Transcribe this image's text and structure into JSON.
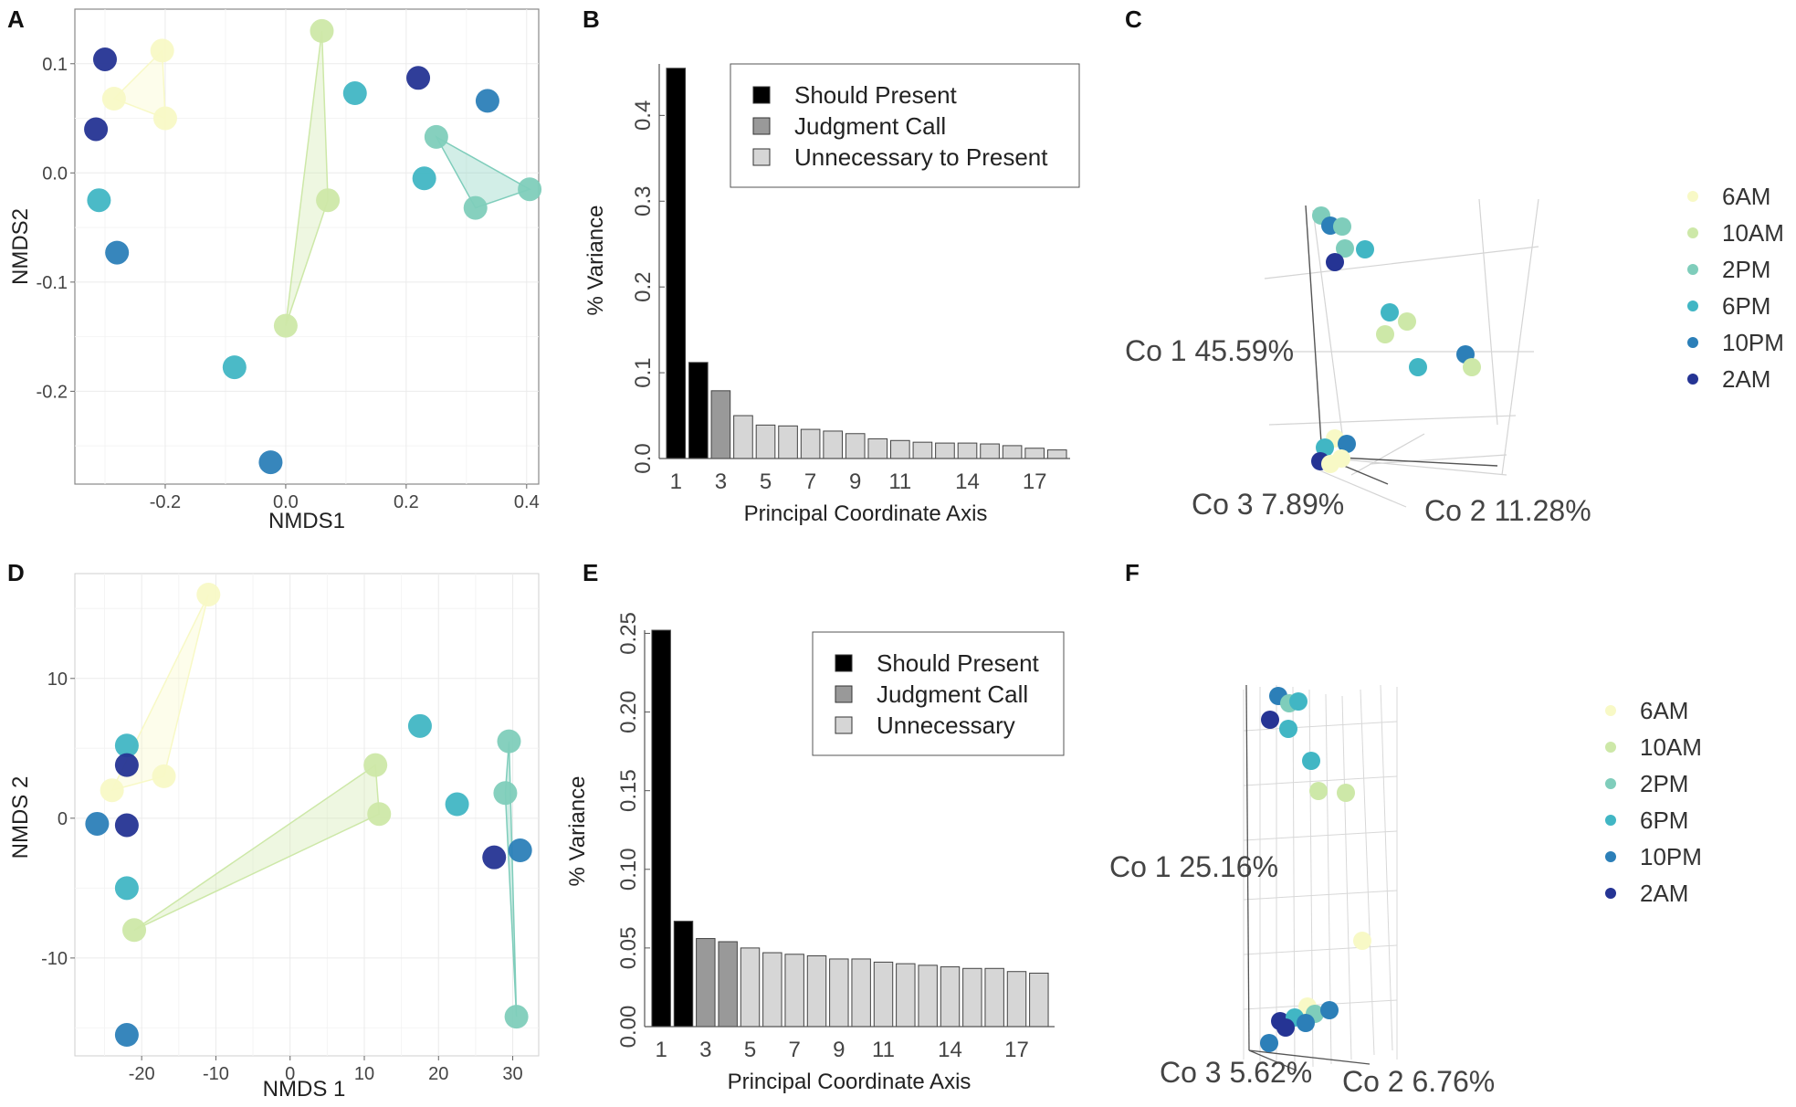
{
  "figure": {
    "colors": {
      "6AM": "#f8f9c6",
      "10AM": "#cde8a8",
      "2PM": "#7fcdbb",
      "6PM": "#41b6c4",
      "10PM": "#2c7fb8",
      "2AM": "#253494",
      "should": "#000000",
      "judgment": "#999999",
      "unnecessary": "#d6d6d6"
    }
  },
  "chart_data": [
    {
      "panel": "A",
      "type": "scatter",
      "xlabel": "NMDS1",
      "ylabel": "NMDS2",
      "xlim": [
        -0.35,
        0.42
      ],
      "ylim": [
        -0.285,
        0.15
      ],
      "xticks": [
        -0.2,
        0.0,
        0.2,
        0.4
      ],
      "xtick_labels": [
        "-0.2",
        "0.0",
        "0.2",
        "0.4"
      ],
      "yticks": [
        -0.2,
        -0.1,
        0.0,
        0.1
      ],
      "ytick_labels": [
        "-0.2",
        "-0.1",
        "0.0",
        "0.1"
      ],
      "hulls": [
        {
          "group": "6AM",
          "points": [
            [
              -0.285,
              0.068
            ],
            [
              -0.205,
              0.112
            ],
            [
              -0.2,
              0.05
            ]
          ]
        },
        {
          "group": "10AM",
          "points": [
            [
              0.06,
              0.13
            ],
            [
              0.07,
              -0.025
            ],
            [
              0.0,
              -0.14
            ]
          ]
        },
        {
          "group": "2PM",
          "points": [
            [
              0.25,
              0.033
            ],
            [
              0.405,
              -0.015
            ],
            [
              0.315,
              -0.032
            ]
          ]
        }
      ],
      "points": [
        {
          "x": -0.3,
          "y": 0.104,
          "group": "2AM"
        },
        {
          "x": -0.315,
          "y": 0.04,
          "group": "2AM"
        },
        {
          "x": -0.205,
          "y": 0.112,
          "group": "6AM"
        },
        {
          "x": -0.285,
          "y": 0.068,
          "group": "6AM"
        },
        {
          "x": -0.2,
          "y": 0.05,
          "group": "6AM"
        },
        {
          "x": -0.31,
          "y": -0.025,
          "group": "6PM"
        },
        {
          "x": -0.28,
          "y": -0.073,
          "group": "10PM"
        },
        {
          "x": 0.06,
          "y": 0.13,
          "group": "10AM"
        },
        {
          "x": 0.115,
          "y": 0.073,
          "group": "6PM"
        },
        {
          "x": 0.07,
          "y": -0.025,
          "group": "10AM"
        },
        {
          "x": 0.0,
          "y": -0.14,
          "group": "10AM"
        },
        {
          "x": -0.085,
          "y": -0.178,
          "group": "6PM"
        },
        {
          "x": -0.025,
          "y": -0.265,
          "group": "10PM"
        },
        {
          "x": 0.22,
          "y": 0.087,
          "group": "2AM"
        },
        {
          "x": 0.335,
          "y": 0.066,
          "group": "10PM"
        },
        {
          "x": 0.25,
          "y": 0.033,
          "group": "2PM"
        },
        {
          "x": 0.23,
          "y": -0.005,
          "group": "6PM"
        },
        {
          "x": 0.405,
          "y": -0.015,
          "group": "2PM"
        },
        {
          "x": 0.315,
          "y": -0.032,
          "group": "2PM"
        }
      ]
    },
    {
      "panel": "B",
      "type": "bar",
      "title": "",
      "xlabel": "Principal Coordinate Axis",
      "ylabel": "% Variance",
      "ylim": [
        0,
        0.46
      ],
      "yticks": [
        0.0,
        0.1,
        0.2,
        0.3,
        0.4
      ],
      "ytick_labels": [
        "0.0",
        "0.1",
        "0.2",
        "0.3",
        "0.4"
      ],
      "xtick_labels": [
        "1",
        "3",
        "5",
        "7",
        "9",
        "11",
        "14",
        "17"
      ],
      "xtick_positions": [
        1,
        3,
        5,
        7,
        9,
        11,
        14,
        17
      ],
      "values": [
        0.455,
        0.112,
        0.079,
        0.05,
        0.039,
        0.038,
        0.034,
        0.032,
        0.029,
        0.023,
        0.021,
        0.019,
        0.018,
        0.018,
        0.017,
        0.015,
        0.012,
        0.01
      ],
      "classes": [
        "should",
        "should",
        "judgment",
        "unnecessary",
        "unnecessary",
        "unnecessary",
        "unnecessary",
        "unnecessary",
        "unnecessary",
        "unnecessary",
        "unnecessary",
        "unnecessary",
        "unnecessary",
        "unnecessary",
        "unnecessary",
        "unnecessary",
        "unnecessary",
        "unnecessary"
      ],
      "legend": [
        {
          "key": "should",
          "label": "Should Present"
        },
        {
          "key": "judgment",
          "label": "Judgment Call"
        },
        {
          "key": "unnecessary",
          "label": "Unnecessary to Present"
        }
      ]
    },
    {
      "panel": "C",
      "type": "scatter3d",
      "axis_labels": {
        "co1": "Co 1 45.59%",
        "co2": "Co 2 11.28%",
        "co3": "Co 3 7.89%"
      },
      "legend": [
        "6AM",
        "10AM",
        "2PM",
        "6PM",
        "10PM",
        "2AM"
      ],
      "points": [
        {
          "group": "2PM"
        },
        {
          "group": "10PM"
        },
        {
          "group": "2PM"
        },
        {
          "group": "2PM"
        },
        {
          "group": "6PM"
        },
        {
          "group": "2AM"
        },
        {
          "group": "6PM"
        },
        {
          "group": "10AM"
        },
        {
          "group": "10AM"
        },
        {
          "group": "6PM"
        },
        {
          "group": "10PM"
        },
        {
          "group": "10AM"
        },
        {
          "group": "6AM"
        },
        {
          "group": "6PM"
        },
        {
          "group": "10PM"
        },
        {
          "group": "2AM"
        },
        {
          "group": "6AM"
        },
        {
          "group": "6AM"
        }
      ]
    },
    {
      "panel": "D",
      "type": "scatter",
      "xlabel": "NMDS 1",
      "ylabel": "NMDS 2",
      "xlim": [
        -29,
        33.5
      ],
      "ylim": [
        -17,
        17.5
      ],
      "xticks": [
        -20,
        -10,
        0,
        10,
        20,
        30
      ],
      "xtick_labels": [
        "-20",
        "-10",
        "0",
        "10",
        "20",
        "30"
      ],
      "yticks": [
        -10,
        0,
        10
      ],
      "ytick_labels": [
        "-10",
        "0",
        "10"
      ],
      "hulls": [
        {
          "group": "6AM",
          "points": [
            [
              -11,
              16
            ],
            [
              -17,
              3
            ],
            [
              -24,
              2
            ]
          ]
        },
        {
          "group": "10AM",
          "points": [
            [
              -21,
              -8
            ],
            [
              11.5,
              3.8
            ],
            [
              12,
              0.3
            ]
          ]
        },
        {
          "group": "2PM",
          "points": [
            [
              29.5,
              5.5
            ],
            [
              29,
              1.8
            ],
            [
              30.5,
              -14.2
            ]
          ]
        }
      ],
      "points": [
        {
          "x": -11,
          "y": 16,
          "group": "6AM"
        },
        {
          "x": -17,
          "y": 3,
          "group": "6AM"
        },
        {
          "x": -24,
          "y": 2,
          "group": "6AM"
        },
        {
          "x": -22,
          "y": 5.2,
          "group": "6PM"
        },
        {
          "x": -22,
          "y": 3.8,
          "group": "2AM"
        },
        {
          "x": -26,
          "y": -0.4,
          "group": "10PM"
        },
        {
          "x": -22,
          "y": -0.5,
          "group": "2AM"
        },
        {
          "x": -22,
          "y": -5,
          "group": "6PM"
        },
        {
          "x": -21,
          "y": -8,
          "group": "10AM"
        },
        {
          "x": -22,
          "y": -15.5,
          "group": "10PM"
        },
        {
          "x": 11.5,
          "y": 3.8,
          "group": "10AM"
        },
        {
          "x": 12,
          "y": 0.3,
          "group": "10AM"
        },
        {
          "x": 17.5,
          "y": 6.6,
          "group": "6PM"
        },
        {
          "x": 22.5,
          "y": 1,
          "group": "6PM"
        },
        {
          "x": 29.5,
          "y": 5.5,
          "group": "2PM"
        },
        {
          "x": 29,
          "y": 1.8,
          "group": "2PM"
        },
        {
          "x": 27.5,
          "y": -2.8,
          "group": "2AM"
        },
        {
          "x": 31,
          "y": -2.3,
          "group": "10PM"
        },
        {
          "x": 30.5,
          "y": -14.2,
          "group": "2PM"
        }
      ]
    },
    {
      "panel": "E",
      "type": "bar",
      "title": "",
      "xlabel": "Principal Coordinate Axis",
      "ylabel": "% Variance",
      "ylim": [
        0,
        0.252
      ],
      "yticks": [
        0.0,
        0.05,
        0.1,
        0.15,
        0.2,
        0.25
      ],
      "ytick_labels": [
        "0.00",
        "0.05",
        "0.10",
        "0.15",
        "0.20",
        "0.25"
      ],
      "xtick_labels": [
        "1",
        "3",
        "5",
        "7",
        "9",
        "11",
        "14",
        "17"
      ],
      "xtick_positions": [
        1,
        3,
        5,
        7,
        9,
        11,
        14,
        17
      ],
      "values": [
        0.252,
        0.067,
        0.056,
        0.054,
        0.05,
        0.047,
        0.046,
        0.045,
        0.043,
        0.043,
        0.041,
        0.04,
        0.039,
        0.038,
        0.037,
        0.037,
        0.035,
        0.034
      ],
      "classes": [
        "should",
        "should",
        "judgment",
        "judgment",
        "unnecessary",
        "unnecessary",
        "unnecessary",
        "unnecessary",
        "unnecessary",
        "unnecessary",
        "unnecessary",
        "unnecessary",
        "unnecessary",
        "unnecessary",
        "unnecessary",
        "unnecessary",
        "unnecessary",
        "unnecessary"
      ],
      "legend": [
        {
          "key": "should",
          "label": "Should Present"
        },
        {
          "key": "judgment",
          "label": "Judgment Call"
        },
        {
          "key": "unnecessary",
          "label": "Unnecessary"
        }
      ]
    },
    {
      "panel": "F",
      "type": "scatter3d",
      "axis_labels": {
        "co1": "Co 1 25.16%",
        "co2": "Co 2 6.76%",
        "co3": "Co 3 5.62%"
      },
      "legend": [
        "6AM",
        "10AM",
        "2PM",
        "6PM",
        "10PM",
        "2AM"
      ],
      "points": [
        {
          "group": "10PM"
        },
        {
          "group": "2PM"
        },
        {
          "group": "6PM"
        },
        {
          "group": "2AM"
        },
        {
          "group": "6PM"
        },
        {
          "group": "6PM"
        },
        {
          "group": "10AM"
        },
        {
          "group": "10AM"
        },
        {
          "group": "6AM"
        },
        {
          "group": "6AM"
        },
        {
          "group": "2PM"
        },
        {
          "group": "10PM"
        },
        {
          "group": "2AM"
        },
        {
          "group": "6PM"
        },
        {
          "group": "10PM"
        },
        {
          "group": "10PM"
        },
        {
          "group": "2AM"
        }
      ]
    }
  ]
}
